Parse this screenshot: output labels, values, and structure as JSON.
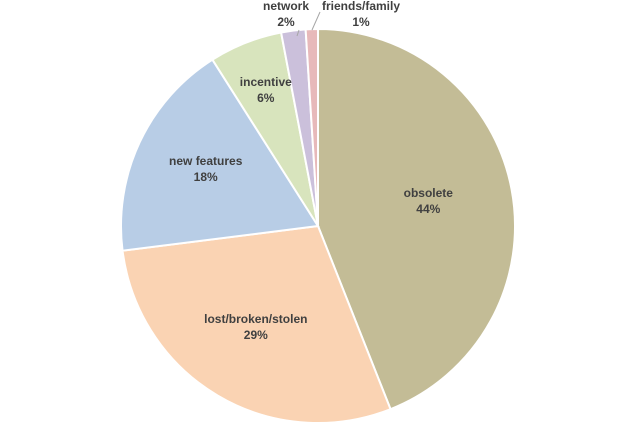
{
  "chart_data": {
    "type": "pie",
    "title": "",
    "slices": [
      {
        "name": "obsolete",
        "value": 44,
        "value_label": "44%",
        "color": "#c3bc96"
      },
      {
        "name": "lost/broken/stolen",
        "value": 29,
        "value_label": "29%",
        "color": "#fad3b3"
      },
      {
        "name": "new features",
        "value": 18,
        "value_label": "18%",
        "color": "#b8cde6"
      },
      {
        "name": "incentive",
        "value": 6,
        "value_label": "6%",
        "color": "#d8e4bd"
      },
      {
        "name": "network",
        "value": 2,
        "value_label": "2%",
        "color": "#cbc0db"
      },
      {
        "name": "friends/family",
        "value": 1,
        "value_label": "1%",
        "color": "#e7b9ba"
      }
    ],
    "start_angle": "top",
    "direction": "clockwise",
    "legend": "none",
    "data_labels": "category name and percentage"
  }
}
